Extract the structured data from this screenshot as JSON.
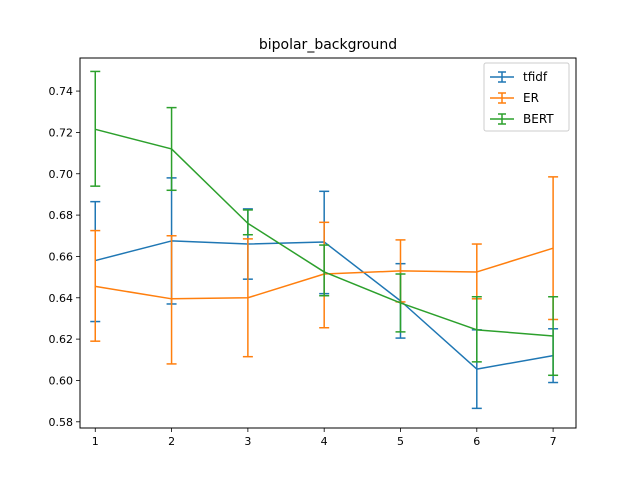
{
  "chart_data": {
    "type": "line",
    "title": "bipolar_background",
    "xlabel": "",
    "ylabel": "",
    "x": [
      1,
      2,
      3,
      4,
      5,
      6,
      7
    ],
    "x_ticks": [
      "1",
      "2",
      "3",
      "4",
      "5",
      "6",
      "7"
    ],
    "xlim": [
      0.8,
      7.3
    ],
    "ylim": [
      0.577,
      0.756
    ],
    "y_ticks": [
      "0.58",
      "0.60",
      "0.62",
      "0.64",
      "0.66",
      "0.68",
      "0.70",
      "0.72",
      "0.74"
    ],
    "grid": false,
    "legend": "top-right",
    "error_bars": true,
    "series": [
      {
        "name": "tfidf",
        "color": "#1f77b4",
        "values": [
          0.658,
          0.6675,
          0.666,
          0.667,
          0.6385,
          0.6055,
          0.612
        ],
        "err_low": [
          0.6285,
          0.637,
          0.649,
          0.642,
          0.6205,
          0.5865,
          0.599
        ],
        "err_high": [
          0.6865,
          0.698,
          0.683,
          0.6915,
          0.6565,
          0.6245,
          0.625
        ]
      },
      {
        "name": "ER",
        "color": "#ff7f0e",
        "values": [
          0.6455,
          0.6395,
          0.64,
          0.6515,
          0.653,
          0.6525,
          0.664
        ],
        "err_low": [
          0.619,
          0.608,
          0.6115,
          0.6255,
          0.638,
          0.6395,
          0.6295
        ],
        "err_high": [
          0.6725,
          0.67,
          0.6685,
          0.6765,
          0.668,
          0.666,
          0.6985
        ]
      },
      {
        "name": "BERT",
        "color": "#2ca02c",
        "values": [
          0.7215,
          0.712,
          0.676,
          0.6525,
          0.6375,
          0.6245,
          0.6215
        ],
        "err_low": [
          0.694,
          0.692,
          0.6705,
          0.641,
          0.6235,
          0.609,
          0.6025
        ],
        "err_high": [
          0.7495,
          0.732,
          0.6825,
          0.6655,
          0.6515,
          0.6405,
          0.6405
        ]
      }
    ]
  }
}
